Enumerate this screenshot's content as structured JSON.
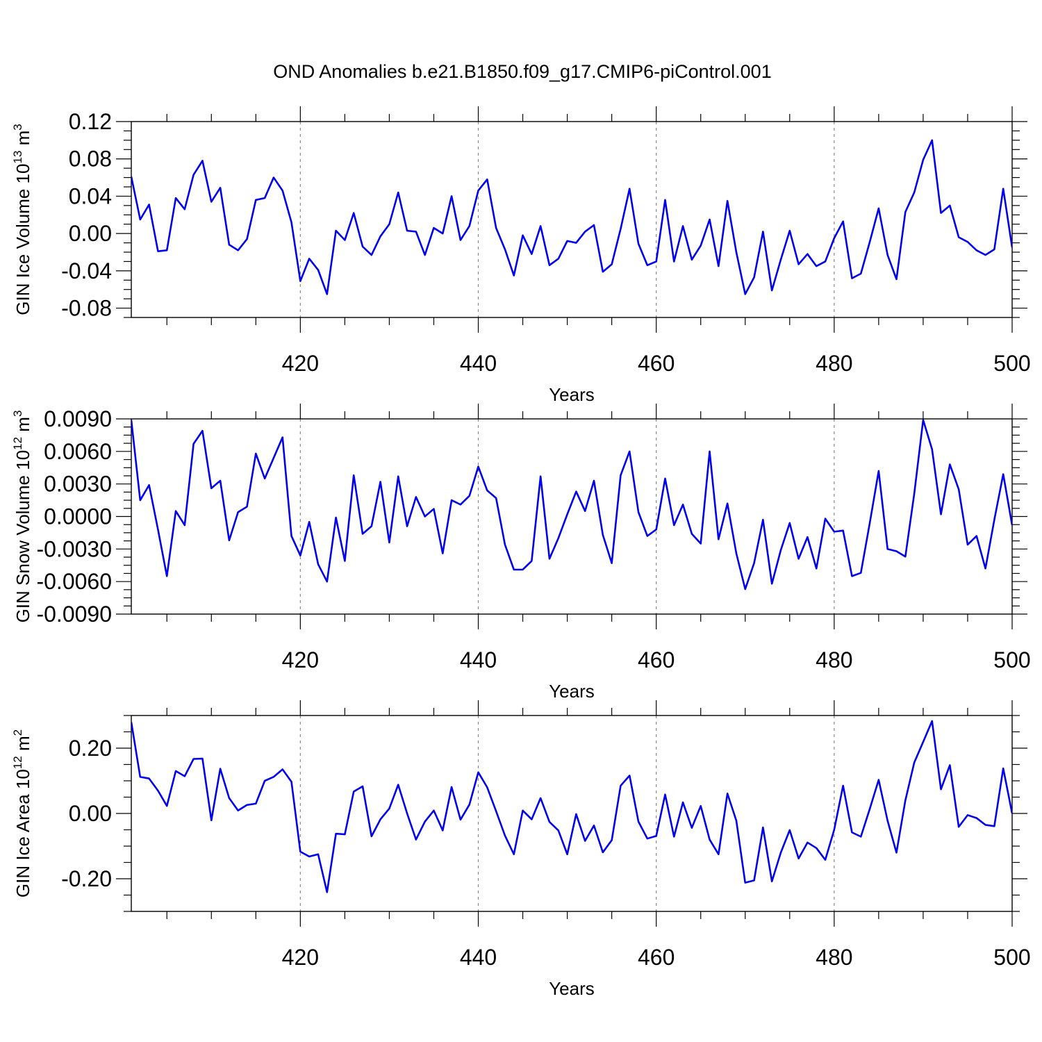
{
  "title": "OND Anomalies b.e21.B1850.f09_g17.CMIP6-piControl.001",
  "colors": {
    "line": "#0000ee",
    "grid": "#888888",
    "axis": "#000000"
  },
  "chart_data": [
    {
      "type": "line",
      "xlabel": "Years",
      "ylabel_main": "GIN Ice Volume 10",
      "ylabel_sup1": "13",
      "ylabel_mid": " m",
      "ylabel_sup2": "3",
      "xlim": [
        401,
        500
      ],
      "ylim": [
        -0.09,
        0.12
      ],
      "x_ticks": [
        "420",
        "440",
        "460",
        "480",
        "500"
      ],
      "y_ticks": [
        "0.12",
        "0.08",
        "0.04",
        "0.00",
        "-0.04",
        "-0.08"
      ],
      "y_tick_values": [
        0.12,
        0.08,
        0.04,
        0.0,
        -0.04,
        -0.08
      ],
      "grid": "dashed vertical at labeled x ticks",
      "x_start": 401,
      "values": [
        0.061,
        0.015,
        0.031,
        -0.019,
        -0.018,
        0.038,
        0.026,
        0.063,
        0.078,
        0.034,
        0.049,
        -0.012,
        -0.018,
        -0.006,
        0.036,
        0.038,
        0.06,
        0.046,
        0.012,
        -0.051,
        -0.027,
        -0.039,
        -0.065,
        0.003,
        -0.007,
        0.022,
        -0.014,
        -0.023,
        -0.003,
        0.01,
        0.044,
        0.003,
        0.002,
        -0.023,
        0.006,
        0.0,
        0.04,
        -0.007,
        0.008,
        0.046,
        0.058,
        0.006,
        -0.017,
        -0.045,
        -0.002,
        -0.022,
        0.008,
        -0.034,
        -0.027,
        -0.008,
        -0.01,
        0.002,
        0.009,
        -0.041,
        -0.033,
        0.005,
        0.048,
        -0.011,
        -0.034,
        -0.03,
        0.036,
        -0.03,
        0.008,
        -0.028,
        -0.013,
        0.015,
        -0.035,
        0.035,
        -0.02,
        -0.065,
        -0.047,
        0.002,
        -0.061,
        -0.028,
        0.003,
        -0.033,
        -0.022,
        -0.035,
        -0.03,
        -0.005,
        0.013,
        -0.048,
        -0.043,
        -0.009,
        0.027,
        -0.023,
        -0.049,
        0.023,
        0.044,
        0.079,
        0.1,
        0.022,
        0.03,
        -0.004,
        -0.009,
        -0.018,
        -0.023,
        -0.017,
        0.048,
        -0.015
      ]
    },
    {
      "type": "line",
      "xlabel": "Years",
      "ylabel_main": "GIN Snow Volume 10",
      "ylabel_sup1": "12",
      "ylabel_mid": " m",
      "ylabel_sup2": "3",
      "xlim": [
        401,
        500
      ],
      "ylim": [
        -0.009,
        0.009
      ],
      "x_ticks": [
        "420",
        "440",
        "460",
        "480",
        "500"
      ],
      "y_ticks": [
        "0.0090",
        "0.0060",
        "0.0030",
        "0.0000",
        "-0.0030",
        "-0.0060",
        "-0.0090"
      ],
      "y_tick_values": [
        0.009,
        0.006,
        0.003,
        0.0,
        -0.003,
        -0.006,
        -0.009
      ],
      "grid": "dashed vertical at labeled x ticks",
      "x_start": 401,
      "values": [
        0.0089,
        0.0015,
        0.0029,
        -0.0012,
        -0.0055,
        0.0005,
        -0.0008,
        0.0067,
        0.0079,
        0.0026,
        0.0033,
        -0.0022,
        0.0004,
        0.0009,
        0.0058,
        0.0035,
        0.0054,
        0.0073,
        -0.0018,
        -0.0036,
        -0.0005,
        -0.0044,
        -0.006,
        -0.0001,
        -0.0041,
        0.0038,
        -0.0016,
        -0.0009,
        0.0032,
        -0.0024,
        0.0037,
        -0.0009,
        0.0018,
        0.0,
        0.0007,
        -0.0034,
        0.0015,
        0.0011,
        0.0019,
        0.0046,
        0.0024,
        0.0017,
        -0.0026,
        -0.0049,
        -0.0049,
        -0.0041,
        0.0037,
        -0.0039,
        -0.002,
        0.0002,
        0.0023,
        0.0005,
        0.0033,
        -0.0017,
        -0.0043,
        0.0038,
        0.006,
        0.0004,
        -0.0018,
        -0.0012,
        0.0035,
        -0.0008,
        0.0011,
        -0.0016,
        -0.0025,
        0.006,
        -0.0021,
        0.0012,
        -0.0034,
        -0.0067,
        -0.0043,
        -0.0003,
        -0.0062,
        -0.0031,
        -0.0006,
        -0.0039,
        -0.0019,
        -0.0048,
        -0.0002,
        -0.0014,
        -0.0013,
        -0.0055,
        -0.0052,
        -0.0006,
        0.0042,
        -0.003,
        -0.0032,
        -0.0037,
        0.0021,
        0.0089,
        0.0062,
        0.0002,
        0.0048,
        0.0025,
        -0.0026,
        -0.0018,
        -0.0048,
        -0.0003,
        0.0039,
        -0.0008
      ]
    },
    {
      "type": "line",
      "xlabel": "Years",
      "ylabel_main": "GIN Ice Area 10",
      "ylabel_sup1": "12",
      "ylabel_mid": " m",
      "ylabel_sup2": "2",
      "xlim": [
        401,
        500
      ],
      "ylim": [
        -0.3,
        0.3
      ],
      "x_ticks": [
        "420",
        "440",
        "460",
        "480",
        "500"
      ],
      "y_ticks": [
        "0.20",
        "0.00",
        "-0.20"
      ],
      "y_tick_values": [
        0.2,
        0.0,
        -0.2
      ],
      "grid": "dashed vertical at labeled x ticks",
      "x_start": 401,
      "values": [
        0.28,
        0.112,
        0.107,
        0.07,
        0.023,
        0.13,
        0.114,
        0.167,
        0.168,
        -0.021,
        0.137,
        0.047,
        0.009,
        0.026,
        0.03,
        0.1,
        0.112,
        0.135,
        0.097,
        -0.117,
        -0.132,
        -0.125,
        -0.241,
        -0.062,
        -0.064,
        0.067,
        0.083,
        -0.07,
        -0.018,
        0.015,
        0.088,
        0.0,
        -0.08,
        -0.025,
        0.009,
        -0.052,
        0.081,
        -0.019,
        0.027,
        0.126,
        0.08,
        0.007,
        -0.068,
        -0.125,
        0.009,
        -0.018,
        0.047,
        -0.026,
        -0.052,
        -0.125,
        -0.002,
        -0.084,
        -0.037,
        -0.119,
        -0.082,
        0.085,
        0.116,
        -0.025,
        -0.077,
        -0.069,
        0.058,
        -0.071,
        0.034,
        -0.044,
        0.023,
        -0.08,
        -0.125,
        0.061,
        -0.022,
        -0.212,
        -0.205,
        -0.043,
        -0.208,
        -0.12,
        -0.051,
        -0.138,
        -0.089,
        -0.106,
        -0.142,
        -0.05,
        0.085,
        -0.058,
        -0.071,
        0.014,
        0.103,
        -0.022,
        -0.12,
        0.04,
        0.156,
        0.219,
        0.283,
        0.074,
        0.148,
        -0.041,
        -0.005,
        -0.014,
        -0.035,
        -0.039,
        0.138,
        0.0
      ]
    }
  ]
}
